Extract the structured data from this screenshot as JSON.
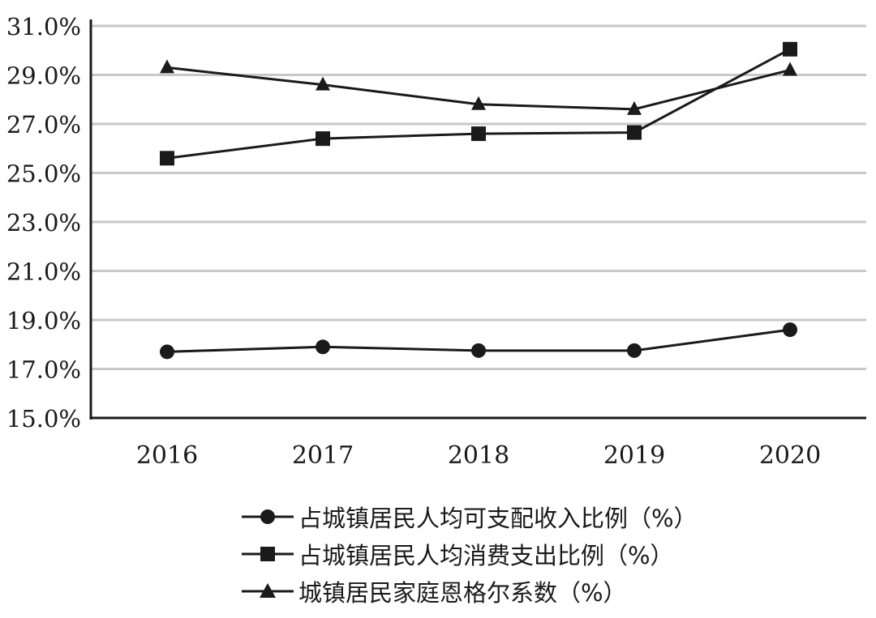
{
  "chart_data": {
    "type": "line",
    "categories": [
      "2016",
      "2017",
      "2018",
      "2019",
      "2020"
    ],
    "ylim": [
      15.0,
      31.0
    ],
    "yticks": [
      15.0,
      17.0,
      19.0,
      21.0,
      23.0,
      25.0,
      27.0,
      29.0,
      31.0
    ],
    "ytick_labels": [
      "15.0%",
      "17.0%",
      "19.0%",
      "21.0%",
      "23.0%",
      "25.0%",
      "27.0%",
      "29.0%",
      "31.0%"
    ],
    "grid": "horizontal",
    "legend_position": "bottom",
    "series": [
      {
        "name": "占城镇居民人均可支配收入比例（%）",
        "marker": "circle",
        "values": [
          17.7,
          17.9,
          17.75,
          17.75,
          18.6
        ]
      },
      {
        "name": "占城镇居民人均消费支出比例（%）",
        "marker": "square",
        "values": [
          25.6,
          26.4,
          26.6,
          26.65,
          30.05
        ]
      },
      {
        "name": "城镇居民家庭恩格尔系数（%）",
        "marker": "triangle",
        "values": [
          29.3,
          28.6,
          27.8,
          27.6,
          29.2
        ]
      }
    ],
    "colors": {
      "line": "#1a1a1a",
      "grid": "#c8c8c8",
      "axis": "#1a1a1a"
    }
  }
}
